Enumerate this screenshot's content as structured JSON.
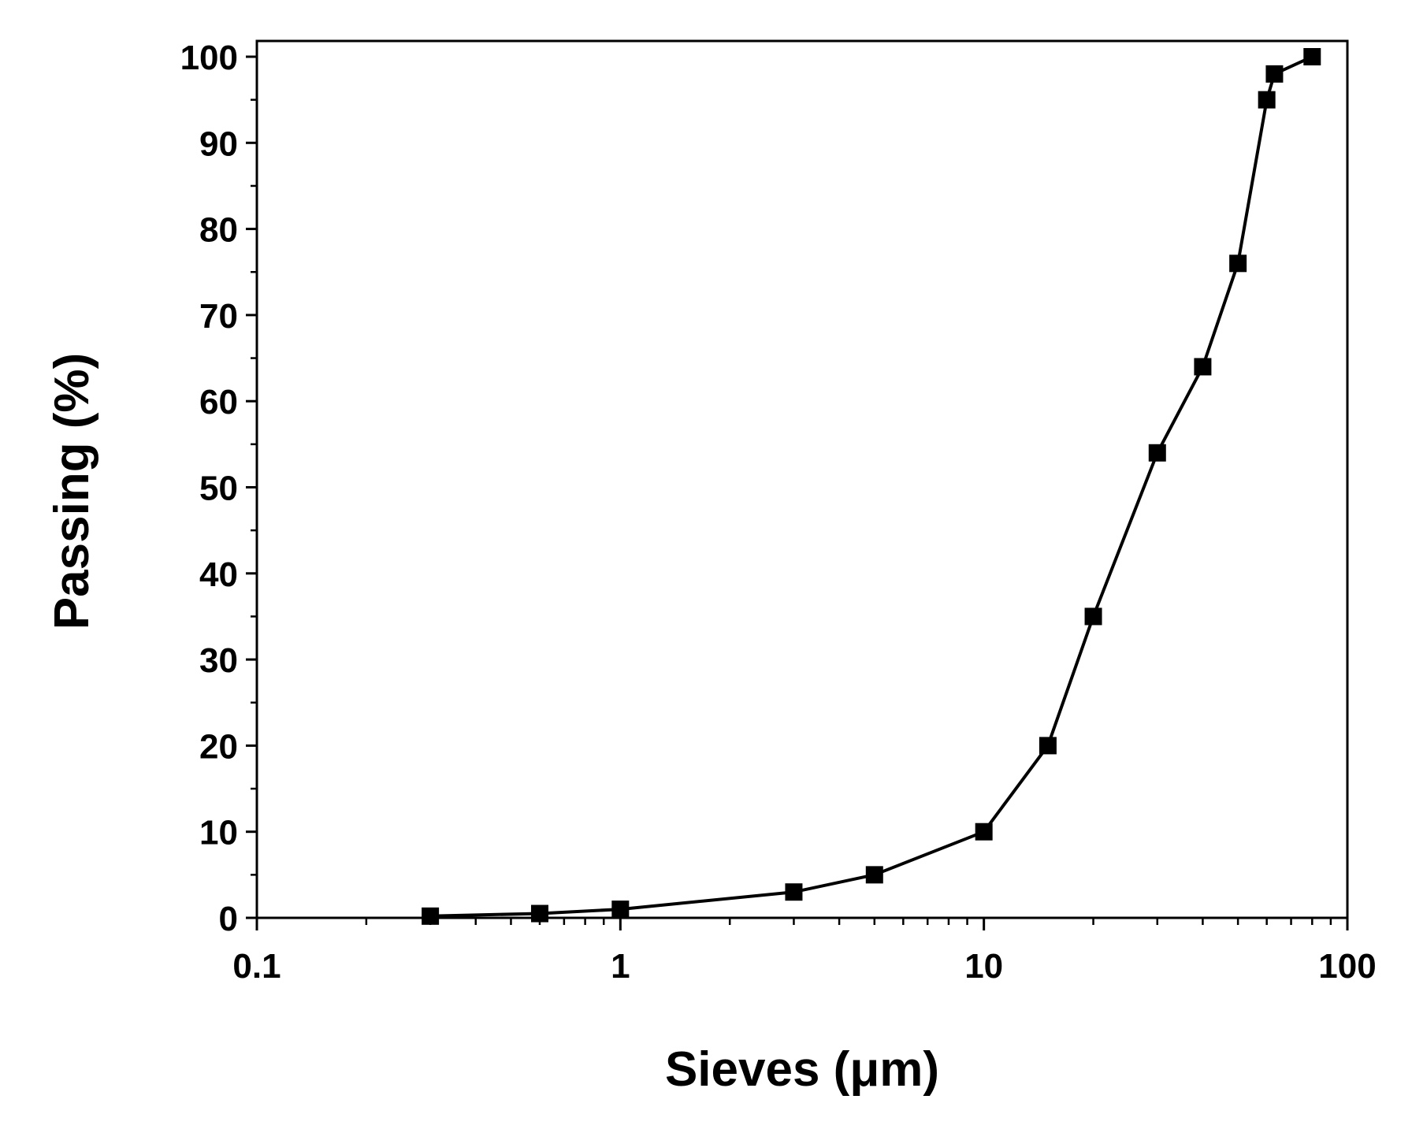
{
  "chart_data": {
    "type": "line",
    "title": "",
    "xlabel": "Sieves (μm)",
    "ylabel": "Passing (%)",
    "x_scale": "log",
    "xlim": [
      0.1,
      100
    ],
    "ylim": [
      0,
      100
    ],
    "x_ticks": [
      0.1,
      1,
      10,
      100
    ],
    "x_tick_labels": [
      "0.1",
      "1",
      "10",
      "100"
    ],
    "y_ticks": [
      0,
      10,
      20,
      30,
      40,
      50,
      60,
      70,
      80,
      90,
      100
    ],
    "y_tick_labels": [
      "0",
      "10",
      "20",
      "30",
      "40",
      "50",
      "60",
      "70",
      "80",
      "90",
      "100"
    ],
    "grid": false,
    "legend": "none",
    "marker": "square",
    "color": "#000000",
    "series": [
      {
        "x": [
          0.3,
          0.6,
          1,
          3,
          5,
          10,
          15,
          20,
          30,
          40,
          50,
          60,
          63,
          80
        ],
        "y": [
          0.2,
          0.5,
          1,
          3,
          5,
          10,
          20,
          35,
          54,
          64,
          76,
          95,
          98,
          100
        ]
      }
    ]
  }
}
